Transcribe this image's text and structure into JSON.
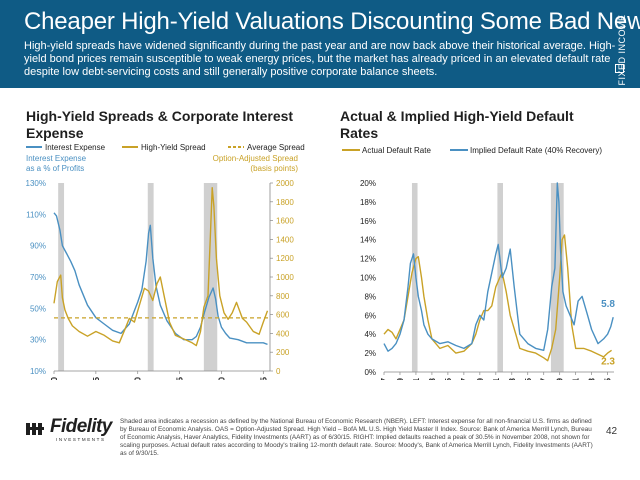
{
  "header": {
    "title": "Cheaper High-Yield Valuations Discounting Some Bad News",
    "subtitle": "High-yield spreads have widened significantly during the past year and are now back above their historical average. High-yield bond prices remain susceptible to weak energy prices, but the market has already priced in an elevated default rate despite low debt-servicing costs and still generally positive corporate balance sheets.",
    "side_tag": "FIXED INCOME"
  },
  "colors": {
    "banner": "#0f5b85",
    "interest_expense": "#4a90c2",
    "high_yield_spread": "#c9a227",
    "average_spread": "#c9a227",
    "recession": "#d0d0d0"
  },
  "chart_data": [
    {
      "type": "line",
      "title": "High-Yield Spreads & Corporate Interest Expense",
      "left_axis_label": [
        "Interest Expense",
        "as a % of Profits"
      ],
      "right_axis_label": [
        "Option-Adjusted Spread",
        "(basis points)"
      ],
      "left_ticks": [
        "10%",
        "30%",
        "50%",
        "70%",
        "90%",
        "110%",
        "130%"
      ],
      "left_ylim": [
        10,
        130
      ],
      "right_ticks": [
        "0",
        "200",
        "400",
        "600",
        "800",
        "1000",
        "1200",
        "1400",
        "1600",
        "1800",
        "2000"
      ],
      "right_ylim": [
        0,
        2000
      ],
      "x_ticks": [
        "1990",
        "1995",
        "2000",
        "2005",
        "2010",
        "2015"
      ],
      "xlim": [
        1990,
        2015.8
      ],
      "legend": [
        {
          "name": "Interest Expense",
          "style": "solid",
          "color": "#4a90c2"
        },
        {
          "name": "High-Yield Spread",
          "style": "solid",
          "color": "#c9a227"
        },
        {
          "name": "Average Spread",
          "style": "dashed",
          "color": "#c9a227"
        }
      ],
      "recessions": [
        [
          1990.5,
          1991.2
        ],
        [
          2001.2,
          2001.9
        ],
        [
          2007.9,
          2009.5
        ]
      ],
      "series": [
        {
          "name": "Interest Expense",
          "axis": "left",
          "x": [
            1990.0,
            1990.3,
            1990.7,
            1991.0,
            1991.5,
            1992.0,
            1992.5,
            1993.0,
            1994.0,
            1995.0,
            1996.0,
            1997.0,
            1998.0,
            1999.0,
            2000.0,
            2000.5,
            2001.0,
            2001.3,
            2001.5,
            2001.8,
            2002.2,
            2002.7,
            2003.5,
            2004.5,
            2005.5,
            2006.5,
            2007.0,
            2007.5,
            2008.0,
            2008.5,
            2009.0,
            2009.3,
            2009.6,
            2010.0,
            2010.5,
            2011.0,
            2012.0,
            2013.0,
            2014.0,
            2015.0,
            2015.5
          ],
          "y": [
            111,
            109,
            100,
            90,
            85,
            80,
            74,
            65,
            52,
            44,
            40,
            36,
            34,
            40,
            54,
            62,
            80,
            98,
            103,
            82,
            64,
            52,
            42,
            34,
            30,
            30,
            32,
            38,
            48,
            57,
            63,
            56,
            45,
            38,
            34,
            31,
            30,
            28,
            28,
            28,
            27
          ]
        },
        {
          "name": "High-Yield Spread",
          "axis": "right",
          "x": [
            1990.0,
            1990.4,
            1990.8,
            1991.0,
            1991.3,
            1991.7,
            1992.2,
            1993.0,
            1994.0,
            1995.0,
            1996.0,
            1997.0,
            1997.8,
            1998.5,
            1999.0,
            1999.6,
            2000.2,
            2000.8,
            2001.3,
            2001.8,
            2002.3,
            2002.7,
            2003.2,
            2003.8,
            2004.5,
            2005.5,
            2006.5,
            2007.0,
            2007.5,
            2007.9,
            2008.4,
            2008.7,
            2008.9,
            2009.1,
            2009.4,
            2009.8,
            2010.3,
            2010.8,
            2011.3,
            2011.8,
            2012.5,
            2013.0,
            2013.8,
            2014.5,
            2015.0,
            2015.5
          ],
          "y": [
            720,
            950,
            1020,
            780,
            650,
            560,
            480,
            420,
            370,
            420,
            380,
            320,
            300,
            450,
            560,
            520,
            700,
            880,
            850,
            750,
            930,
            1000,
            780,
            520,
            380,
            340,
            300,
            270,
            420,
            680,
            800,
            1500,
            1950,
            1750,
            1200,
            800,
            620,
            550,
            620,
            730,
            560,
            520,
            420,
            390,
            520,
            640
          ]
        },
        {
          "name": "Average Spread",
          "axis": "right",
          "x": [
            1990.0,
            2015.8
          ],
          "y": [
            565,
            565
          ]
        }
      ]
    },
    {
      "type": "line",
      "title": "Actual & Implied High-Yield Default Rates",
      "y_ticks": [
        "0%",
        "2%",
        "4%",
        "6%",
        "8%",
        "10%",
        "12%",
        "14%",
        "16%",
        "18%",
        "20%"
      ],
      "ylim": [
        0,
        20
      ],
      "x_ticks": [
        "1987",
        "1989",
        "1991",
        "1993",
        "1995",
        "1997",
        "1999",
        "2001",
        "2003",
        "2005",
        "2007",
        "2009",
        "2011",
        "2013",
        "2015"
      ],
      "xlim": [
        1987,
        2015.8
      ],
      "legend": [
        {
          "name": "Actual Default Rate",
          "color": "#c9a227"
        },
        {
          "name": "Implied Default Rate (40% Recovery)",
          "color": "#4a90c2"
        }
      ],
      "recessions": [
        [
          1990.5,
          1991.2
        ],
        [
          2001.2,
          2001.9
        ],
        [
          2007.9,
          2009.5
        ]
      ],
      "end_labels": {
        "implied": "5.8",
        "actual": "2.3"
      },
      "series": [
        {
          "name": "Actual Default Rate",
          "x": [
            1987.0,
            1987.5,
            1988.0,
            1988.5,
            1989.0,
            1989.5,
            1990.0,
            1990.5,
            1991.0,
            1991.3,
            1991.7,
            1992.0,
            1992.5,
            1993.0,
            1994.0,
            1995.0,
            1996.0,
            1997.0,
            1998.0,
            1998.5,
            1999.0,
            1999.5,
            2000.0,
            2000.5,
            2001.0,
            2001.5,
            2001.8,
            2002.3,
            2002.8,
            2003.5,
            2004.0,
            2005.0,
            2006.0,
            2007.0,
            2007.5,
            2008.0,
            2008.5,
            2009.0,
            2009.3,
            2009.6,
            2010.0,
            2010.5,
            2011.0,
            2012.0,
            2013.0,
            2014.0,
            2014.5,
            2015.0,
            2015.5
          ],
          "y": [
            4.0,
            4.5,
            4.2,
            3.5,
            4.5,
            5.5,
            8.0,
            10.5,
            12.0,
            12.2,
            10.0,
            8.0,
            5.5,
            3.5,
            2.5,
            2.8,
            2.0,
            2.2,
            3.0,
            4.0,
            5.5,
            6.5,
            6.5,
            7.0,
            9.0,
            10.0,
            10.5,
            8.5,
            6.0,
            4.0,
            2.5,
            2.2,
            2.0,
            1.5,
            1.2,
            2.5,
            4.5,
            10.0,
            14.0,
            14.5,
            11.0,
            5.0,
            2.5,
            2.5,
            2.2,
            1.8,
            1.6,
            2.0,
            2.3
          ]
        },
        {
          "name": "Implied Default Rate (40% Recovery)",
          "x": [
            1987.0,
            1987.5,
            1988.0,
            1988.5,
            1989.0,
            1989.5,
            1990.0,
            1990.3,
            1990.7,
            1991.0,
            1991.3,
            1991.7,
            1992.0,
            1992.5,
            1993.0,
            1994.0,
            1995.0,
            1996.0,
            1997.0,
            1998.0,
            1998.5,
            1999.0,
            1999.5,
            2000.0,
            2000.5,
            2001.0,
            2001.3,
            2001.8,
            2002.3,
            2002.8,
            2003.3,
            2004.0,
            2005.0,
            2006.0,
            2007.0,
            2007.5,
            2008.0,
            2008.4,
            2008.7,
            2008.9,
            2009.1,
            2009.4,
            2009.8,
            2010.3,
            2010.8,
            2011.3,
            2011.8,
            2012.5,
            2013.0,
            2013.8,
            2014.5,
            2015.0,
            2015.4,
            2015.7
          ],
          "y": [
            3.0,
            2.2,
            2.5,
            3.0,
            4.0,
            5.5,
            9.0,
            11.5,
            12.5,
            10.0,
            8.0,
            6.5,
            5.0,
            4.0,
            3.5,
            3.0,
            3.2,
            2.8,
            2.5,
            3.0,
            5.0,
            6.0,
            5.5,
            8.5,
            10.5,
            12.5,
            13.5,
            10.0,
            11.0,
            13.0,
            9.0,
            4.0,
            3.0,
            2.5,
            2.3,
            4.5,
            9.0,
            11.0,
            20.0,
            18.0,
            13.0,
            8.5,
            7.0,
            6.0,
            5.0,
            7.5,
            8.0,
            6.0,
            4.5,
            3.0,
            3.5,
            4.0,
            4.8,
            5.8
          ]
        }
      ]
    }
  ],
  "footer": {
    "note": "Shaded area indicates a recession as defined by the National Bureau of Economic Research (NBER). LEFT: Interest expense for all non-financial U.S. firms as defined by Bureau of Economic Analysis. OAS = Option-Adjusted Spread. High Yield – BofA ML U.S. High Yield Master II Index. Source: Bank of America Merrill Lynch, Bureau of Economic Analysis, Haver Analytics, Fidelity Investments (AART) as of 6/30/15. RIGHT: Implied defaults reached a peak of 30.5% in November 2008, not shown for scaling purposes. Actual default rates according to Moody's trailing 12-month default rate. Source: Moody's, Bank of America Merrill Lynch, Fidelity Investments (AART) as of 9/30/15.",
    "logo_text": "Fidelity",
    "logo_sub": "INVESTMENTS",
    "page_number": "42"
  }
}
